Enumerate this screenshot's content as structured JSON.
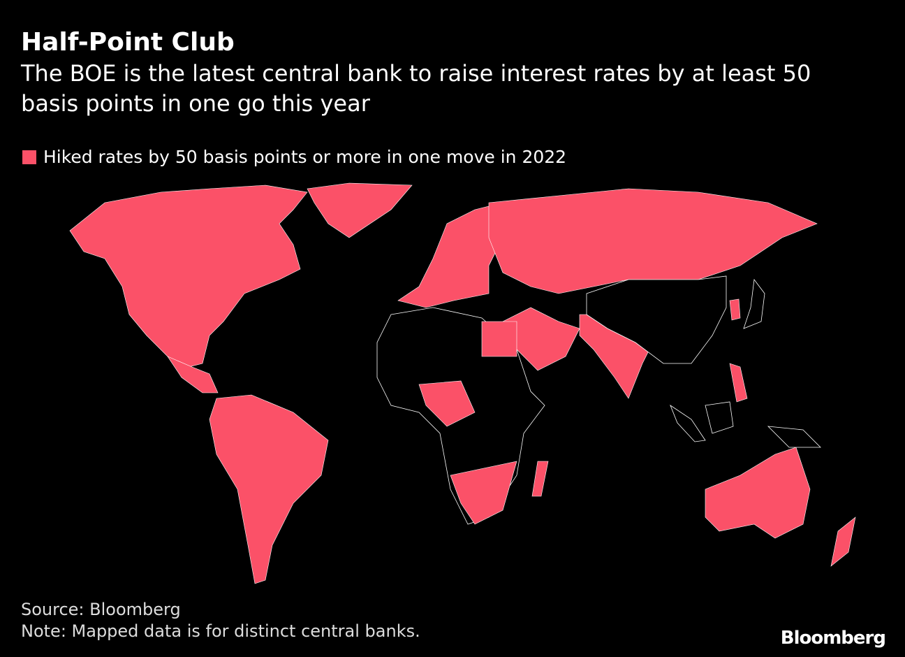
{
  "header": {
    "title": "Half-Point Club",
    "subtitle": "The BOE is the latest central bank to raise interest rates by at least 50 basis points in one go this year"
  },
  "legend": {
    "label": "Hiked rates by 50 basis points or more in one move in 2022",
    "color": "#fb5168"
  },
  "footer": {
    "source": "Source: Bloomberg",
    "note": "Note: Mapped data is for distinct central banks.",
    "logo": "Bloomberg"
  }
}
